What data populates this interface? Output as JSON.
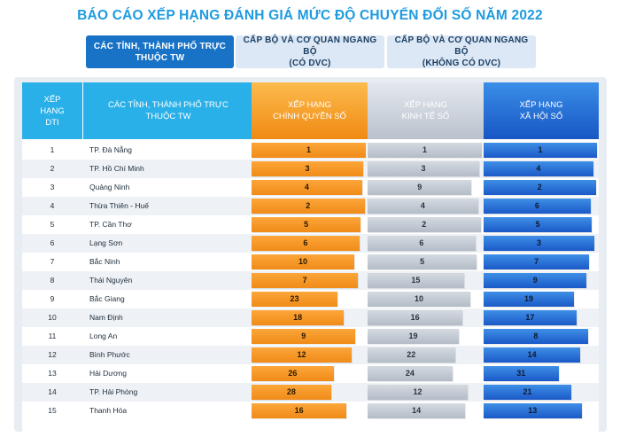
{
  "title": "BÁO CÁO XẾP HẠNG ĐÁNH GIÁ MỨC ĐỘ CHUYỂN ĐỔI SỐ NĂM 2022",
  "tabs": [
    {
      "line1": "CÁC TỈNH, THÀNH PHỐ TRỰC",
      "line2": "THUỘC TW",
      "active": true
    },
    {
      "line1": "CẤP BỘ VÀ CƠ QUAN NGANG BỘ",
      "line2": "(CÓ DVC)",
      "active": false
    },
    {
      "line1": "CẤP BỘ VÀ CƠ QUAN NGANG BỘ",
      "line2": "(KHÔNG CÓ DVC)",
      "active": false
    }
  ],
  "headers": {
    "dti_line1": "XẾP",
    "dti_line2": "HẠNG",
    "dti_line3": "DTI",
    "name_line1": "CÁC TỈNH, THÀNH PHỐ TRỰC",
    "name_line2": "THUỘC TW",
    "gov_line1": "XẾP HẠNG",
    "gov_line2": "CHÍNH QUYỀN SỐ",
    "eco_line1": "XẾP HẠNG",
    "eco_line2": "KINH TẾ SỐ",
    "soc_line1": "XẾP HẠNG",
    "soc_line2": "XÃ HỘI SỐ"
  },
  "colors": {
    "title": "#1e9be0",
    "tab_active": "#1872c6",
    "tab_inactive": "#dce8f5",
    "gov_bar": "#f08b18",
    "eco_bar": "#b3bcc7",
    "soc_bar": "#1a59c8"
  },
  "rows": [
    {
      "dti": "1",
      "name": "TP. Đà Nẵng",
      "gov": "1",
      "eco": "1",
      "soc": "1"
    },
    {
      "dti": "2",
      "name": "TP. Hồ Chí Minh",
      "gov": "3",
      "eco": "3",
      "soc": "4"
    },
    {
      "dti": "3",
      "name": "Quảng Ninh",
      "gov": "4",
      "eco": "9",
      "soc": "2"
    },
    {
      "dti": "4",
      "name": "Thừa Thiên - Huế",
      "gov": "2",
      "eco": "4",
      "soc": "6"
    },
    {
      "dti": "5",
      "name": "TP. Cần Thơ",
      "gov": "5",
      "eco": "2",
      "soc": "5"
    },
    {
      "dti": "6",
      "name": "Lạng Sơn",
      "gov": "6",
      "eco": "6",
      "soc": "3"
    },
    {
      "dti": "7",
      "name": "Bắc Ninh",
      "gov": "10",
      "eco": "5",
      "soc": "7"
    },
    {
      "dti": "8",
      "name": "Thái Nguyên",
      "gov": "7",
      "eco": "15",
      "soc": "9"
    },
    {
      "dti": "9",
      "name": "Bắc Giang",
      "gov": "23",
      "eco": "10",
      "soc": "19"
    },
    {
      "dti": "10",
      "name": "Nam Định",
      "gov": "18",
      "eco": "16",
      "soc": "17"
    },
    {
      "dti": "11",
      "name": "Long An",
      "gov": "9",
      "eco": "19",
      "soc": "8"
    },
    {
      "dti": "12",
      "name": "Bình Phước",
      "gov": "12",
      "eco": "22",
      "soc": "14"
    },
    {
      "dti": "13",
      "name": "Hải Dương",
      "gov": "26",
      "eco": "24",
      "soc": "31"
    },
    {
      "dti": "14",
      "name": "TP. Hải Phòng",
      "gov": "28",
      "eco": "12",
      "soc": "21"
    },
    {
      "dti": "15",
      "name": "Thanh Hóa",
      "gov": "16",
      "eco": "14",
      "soc": "13"
    }
  ]
}
